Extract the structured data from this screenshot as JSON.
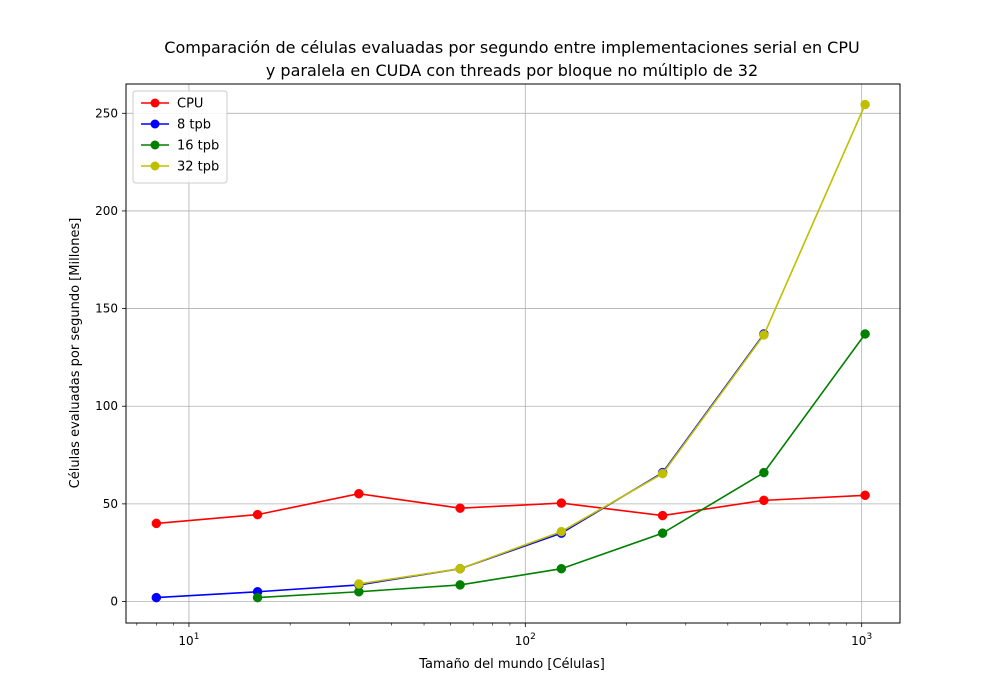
{
  "chart_data": {
    "type": "line",
    "title": [
      "Comparación de células evaluadas por segundo entre implementaciones serial en CPU",
      "y paralela en CUDA con threads por bloque no múltiplo de 32"
    ],
    "xlabel": "Tamaño del mundo [Células]",
    "ylabel": "Células evaluadas por segundo [Millones]",
    "xscale": "log",
    "xlim": [
      6.5,
      1300
    ],
    "ylim": [
      -11,
      265
    ],
    "yticks": [
      0,
      50,
      100,
      150,
      200,
      250
    ],
    "ytick_labels": [
      "0",
      "50",
      "100",
      "150",
      "200",
      "250"
    ],
    "xticks": [
      10,
      100,
      1000
    ],
    "xtick_labels": [
      {
        "base": "10",
        "exp": "1"
      },
      {
        "base": "10",
        "exp": "2"
      },
      {
        "base": "10",
        "exp": "3"
      }
    ],
    "grid": true,
    "legend_position": "top-left",
    "series": [
      {
        "name": "CPU",
        "color": "#ff0000",
        "x": [
          8,
          16,
          32,
          64,
          128,
          256,
          512,
          1024
        ],
        "y": [
          40,
          44.5,
          55.2,
          47.8,
          50.4,
          44,
          51.8,
          54.4
        ]
      },
      {
        "name": "8 tpb",
        "color": "#0000ff",
        "x": [
          8,
          16,
          32,
          64,
          128,
          256,
          512
        ],
        "y": [
          2,
          5,
          8.5,
          16.8,
          35,
          66,
          137
        ]
      },
      {
        "name": "16 tpb",
        "color": "#008000",
        "x": [
          16,
          32,
          64,
          128,
          256,
          512,
          1024
        ],
        "y": [
          2,
          5,
          8.5,
          16.8,
          35,
          66,
          137
        ]
      },
      {
        "name": "32 tpb",
        "color": "#bfbf00",
        "x": [
          32,
          64,
          128,
          256,
          512,
          1024
        ],
        "y": [
          9,
          16.8,
          35.8,
          65.5,
          136.5,
          254.5
        ]
      }
    ]
  }
}
